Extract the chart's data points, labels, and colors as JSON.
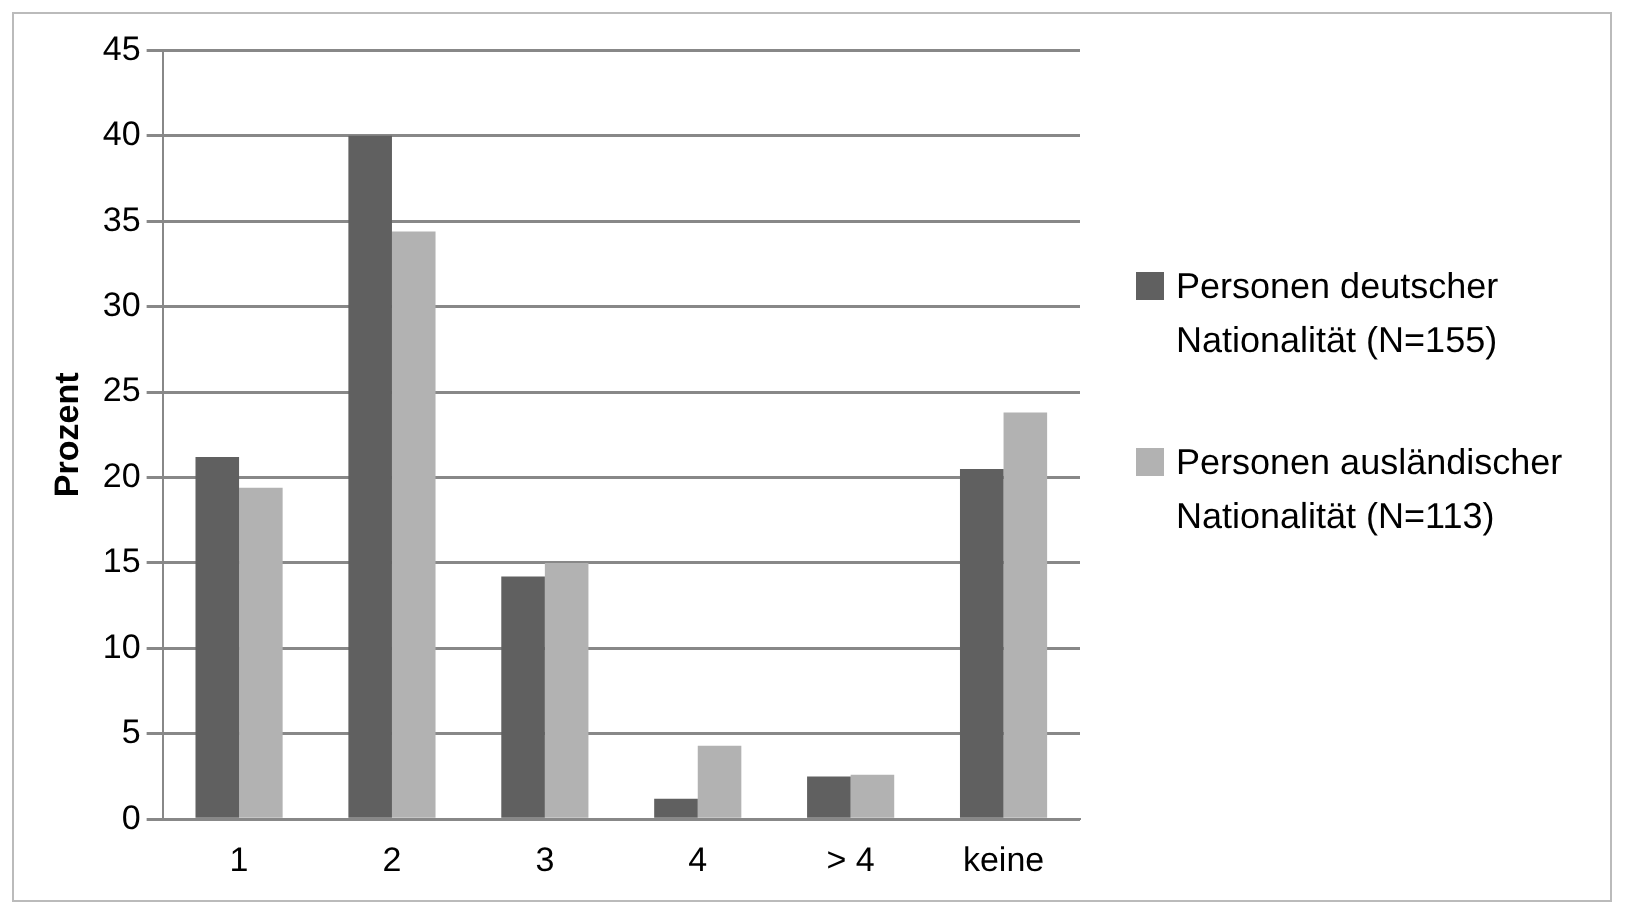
{
  "chart_data": {
    "type": "bar",
    "ylabel": "Prozent",
    "categories": [
      "1",
      "2",
      "3",
      "4",
      "> 4",
      "keine"
    ],
    "series": [
      {
        "name": "Personen deutscher Nationalität (N=155)",
        "color": "#606060",
        "values": [
          21.2,
          40.0,
          14.2,
          1.2,
          2.5,
          20.5
        ]
      },
      {
        "name": "Personen ausländischer Nationalität (N=113)",
        "color": "#b2b2b2",
        "values": [
          19.4,
          34.4,
          15.0,
          4.3,
          2.6,
          23.8
        ]
      }
    ],
    "ylim": [
      0,
      45
    ],
    "yticks": [
      0,
      5,
      10,
      15,
      20,
      25,
      30,
      35,
      40,
      45
    ],
    "grid": "y",
    "legend": "right"
  }
}
